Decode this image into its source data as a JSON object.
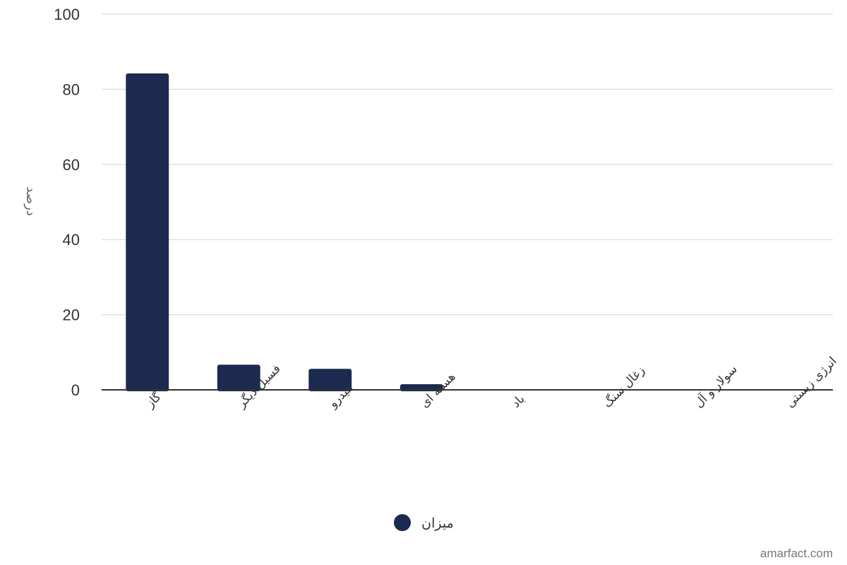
{
  "chart_data": {
    "type": "bar",
    "categories": [
      "گاز",
      "فسیل دیگر",
      "هیدرو",
      "هسته ای",
      "باد",
      "زغال سنگ",
      "سولار و آل",
      "انرژی زیستی"
    ],
    "series": [
      {
        "name": "میزان",
        "values": [
          84.2,
          6.7,
          5.6,
          1.5,
          0,
          0,
          0,
          0
        ]
      }
    ],
    "ylabel": "درصد",
    "xlabel": "",
    "ylim": [
      0,
      100
    ],
    "yticks": [
      0,
      20,
      40,
      60,
      80,
      100
    ],
    "grid": true,
    "legend_position": "bottom-center",
    "colors": {
      "bar": "#1b2a4e",
      "grid": "#e0e0e0",
      "axis": "#333333"
    }
  },
  "credit": "amarfact.com"
}
